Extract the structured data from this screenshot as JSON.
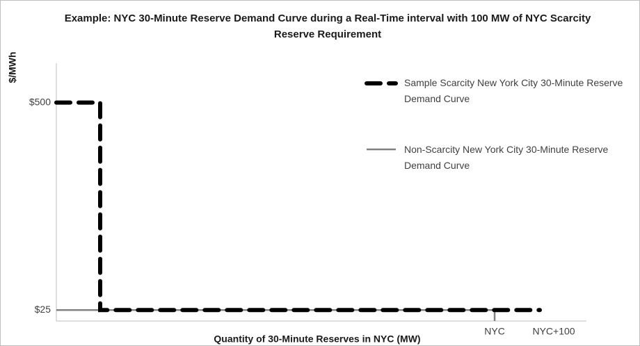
{
  "chart_data": {
    "type": "line",
    "title": "Example: NYC 30-Minute Reserve Demand Curve during a Real-Time interval with 100 MW of NYC Scarcity Reserve Requirement",
    "xlabel": "Quantity of 30-Minute Reserves in NYC (MW)",
    "ylabel": "$/MWh",
    "xlim": [
      -970,
      100
    ],
    "xticks": [
      {
        "value": 0,
        "label": "NYC"
      },
      {
        "value": 100,
        "label": "NYC+100"
      }
    ],
    "ylim": [
      0,
      590
    ],
    "yticks": [
      {
        "value": 25,
        "label": "$25"
      },
      {
        "value": 500,
        "label": "$500"
      }
    ],
    "grid": false,
    "legend": "upper right",
    "series": [
      {
        "name": "Sample Scarcity New York City 30-Minute Reserve Demand Curve",
        "color": "#000000",
        "line_style": "dashed",
        "x": [
          -970,
          -873,
          -873,
          100
        ],
        "values": [
          500,
          500,
          25,
          25
        ]
      },
      {
        "name": "Non-Scarcity New York City 30-Minute Reserve Demand Curve",
        "color": "#808080",
        "line_style": "solid",
        "x": [
          -970,
          0,
          0
        ],
        "values": [
          25,
          25,
          0
        ]
      }
    ]
  }
}
